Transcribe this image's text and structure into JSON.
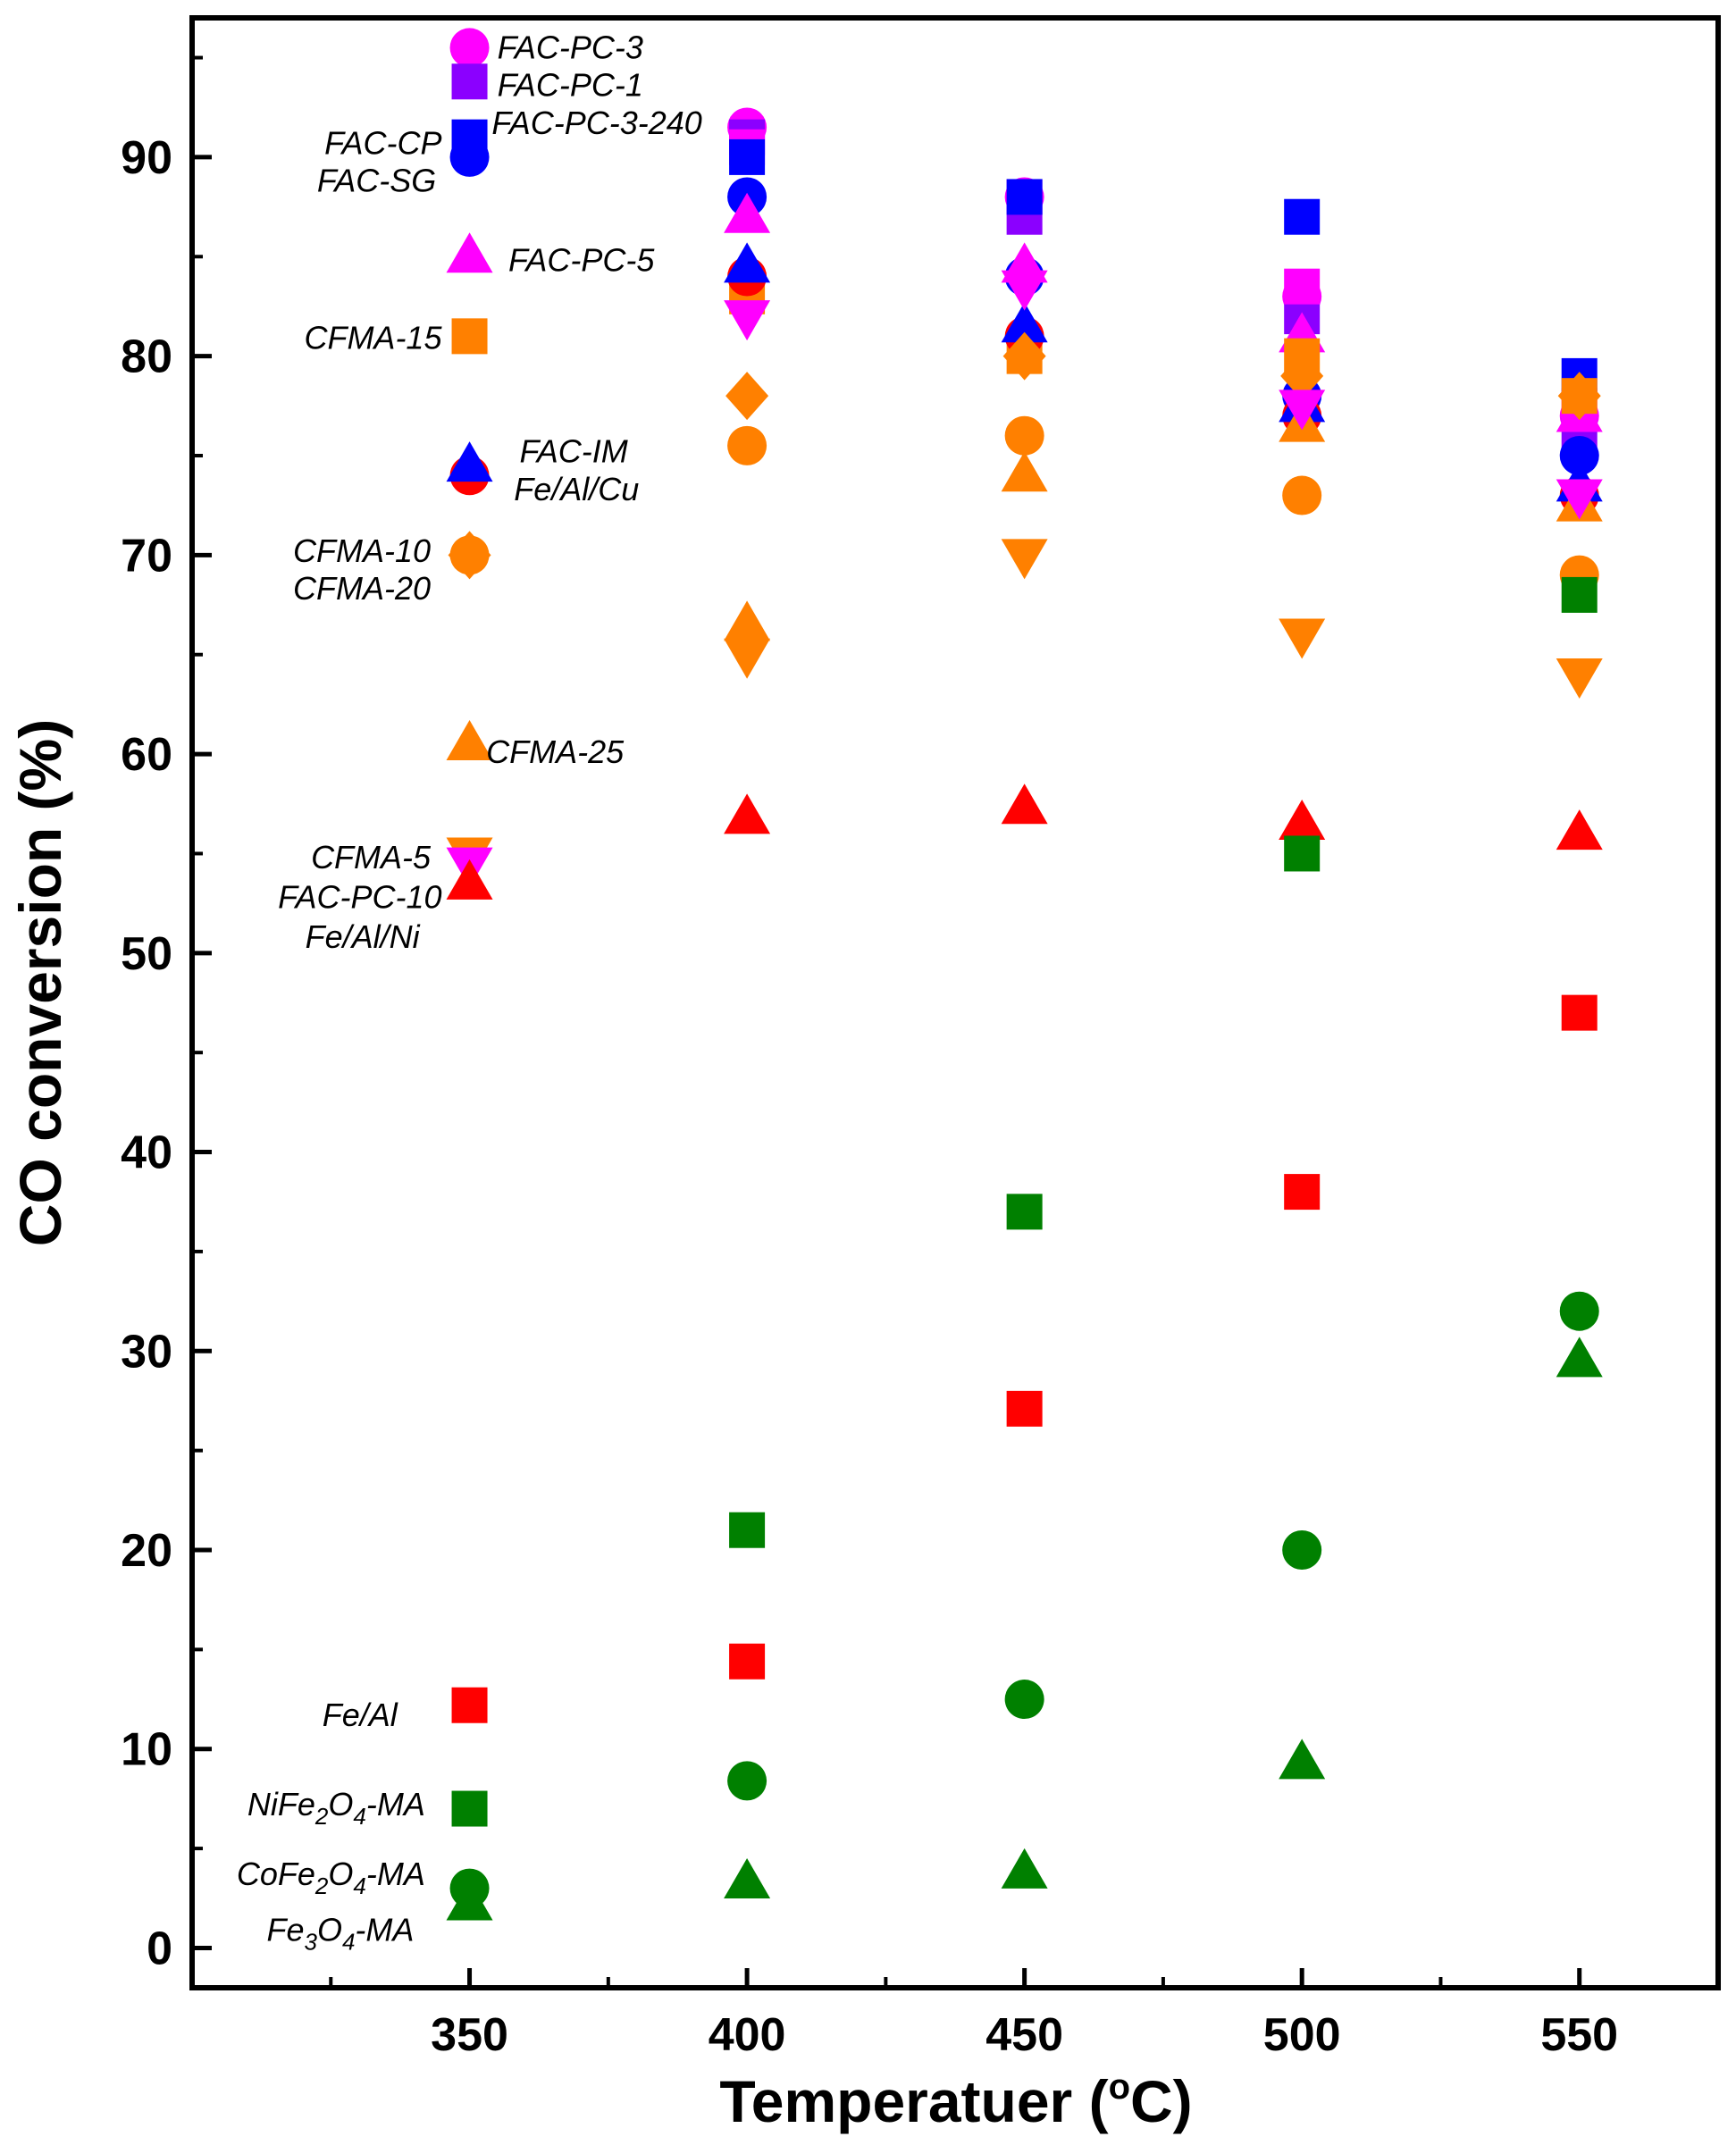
{
  "chart_data": {
    "type": "scatter",
    "title": "",
    "xlabel": "Temperatuer (",
    "xlabel_unit": "C)",
    "xlabel_superscript": "o",
    "ylabel": "CO conversion (%)",
    "xlim": [
      300,
      575
    ],
    "ylim": [
      -2,
      97
    ],
    "xticks": [
      350,
      400,
      450,
      500,
      550
    ],
    "yticks": [
      0,
      10,
      20,
      30,
      40,
      50,
      60,
      70,
      80,
      90
    ],
    "grid": false,
    "legend": "inline labels left of the 350 °C markers",
    "series": [
      {
        "name": "FAC-PC-3",
        "marker": "circle",
        "color": "#ff00ff",
        "x": [
          350,
          400,
          450,
          500,
          550
        ],
        "y": [
          95.5,
          91.5,
          88,
          83,
          77
        ]
      },
      {
        "name": "FAC-PC-1",
        "marker": "square",
        "color": "#8b00ff",
        "x": [
          350,
          400,
          450,
          500,
          550
        ],
        "y": [
          93.8,
          91,
          87,
          82,
          76
        ]
      },
      {
        "name": "FAC-PC-3-240",
        "marker": "square",
        "color": "#ff00ff",
        "x": [
          400,
          450,
          500,
          550
        ],
        "y": [
          90.5,
          88,
          83.5,
          77.5
        ]
      },
      {
        "name": "FAC-CP",
        "marker": "square",
        "color": "#0000ff",
        "x": [
          350,
          400,
          450,
          500,
          550
        ],
        "y": [
          91,
          90,
          88,
          87,
          79
        ]
      },
      {
        "name": "FAC-SG",
        "marker": "circle",
        "color": "#0000ff",
        "x": [
          350,
          400,
          450,
          500,
          550
        ],
        "y": [
          90,
          88,
          84,
          78,
          75
        ]
      },
      {
        "name": "FAC-PC-5",
        "marker": "triangle-up",
        "color": "#ff00ff",
        "x": [
          350,
          400,
          450,
          500,
          550
        ],
        "y": [
          85,
          87,
          84.5,
          81,
          77
        ]
      },
      {
        "name": "CFMA-15",
        "marker": "square",
        "color": "#ff8000",
        "x": [
          350,
          400,
          450,
          500,
          550
        ],
        "y": [
          81,
          83,
          80,
          80,
          78
        ]
      },
      {
        "name": "FAC-IM",
        "marker": "circle",
        "color": "#ff0000",
        "x": [
          350,
          400,
          450,
          500,
          550
        ],
        "y": [
          74,
          84,
          81,
          77,
          73
        ]
      },
      {
        "name": "Fe/Al/Cu",
        "marker": "triangle-up",
        "color": "#0000ff",
        "x": [
          350,
          400,
          450,
          500,
          550
        ],
        "y": [
          74.5,
          84.5,
          81.5,
          77.5,
          73.5
        ]
      },
      {
        "name": "CFMA-10",
        "marker": "diamond",
        "color": "#ff8000",
        "x": [
          350,
          400,
          450,
          500,
          550
        ],
        "y": [
          70,
          78,
          80,
          79,
          78
        ]
      },
      {
        "name": "CFMA-20",
        "marker": "circle",
        "color": "#ff8000",
        "x": [
          350,
          400,
          450,
          500,
          550
        ],
        "y": [
          70,
          75.5,
          76,
          73,
          69
        ]
      },
      {
        "name": "CFMA-25",
        "marker": "triangle-up",
        "color": "#ff8000",
        "x": [
          350,
          400,
          450,
          500,
          550
        ],
        "y": [
          60.5,
          66.5,
          74,
          76.5,
          72.5
        ]
      },
      {
        "name": "CFMA-5",
        "marker": "triangle-down",
        "color": "#ff8000",
        "x": [
          350,
          400,
          450,
          500,
          550
        ],
        "y": [
          55,
          65,
          70,
          66,
          64
        ]
      },
      {
        "name": "FAC-PC-10",
        "marker": "triangle-down",
        "color": "#ff00ff",
        "x": [
          350,
          400,
          450,
          500,
          550
        ],
        "y": [
          54.5,
          82,
          83.5,
          77.5,
          73
        ]
      },
      {
        "name": "Fe/Al/Ni",
        "marker": "triangle-up",
        "color": "#ff0000",
        "x": [
          350,
          400,
          450,
          500,
          550
        ],
        "y": [
          53.5,
          56.8,
          57.3,
          56.5,
          56
        ]
      },
      {
        "name": "Fe/Al",
        "marker": "square",
        "color": "#ff0000",
        "x": [
          350,
          400,
          450,
          500,
          550
        ],
        "y": [
          12.2,
          14.4,
          27.1,
          38,
          47
        ]
      },
      {
        "name": "NiFe2O4-MA",
        "marker": "square",
        "color": "#008000",
        "x": [
          350,
          400,
          450,
          500,
          550
        ],
        "y": [
          7,
          21,
          37,
          55,
          68
        ]
      },
      {
        "name": "CoFe2O4-MA",
        "marker": "circle",
        "color": "#008000",
        "x": [
          350,
          400,
          450,
          500,
          550
        ],
        "y": [
          3,
          8.4,
          12.5,
          20,
          32
        ]
      },
      {
        "name": "Fe3O4-MA",
        "marker": "triangle-up",
        "color": "#008000",
        "x": [
          350,
          400,
          450,
          500,
          550
        ],
        "y": [
          2.2,
          3.3,
          3.8,
          9.3,
          29.5
        ]
      }
    ],
    "labels": [
      {
        "text": "FAC-PC-3",
        "x": 355,
        "y": 95.5,
        "anchor": "start"
      },
      {
        "text": "FAC-PC-1",
        "x": 355,
        "y": 93.6,
        "anchor": "start"
      },
      {
        "text": "FAC-PC-3-240",
        "x": 354,
        "y": 91.7,
        "anchor": "start"
      },
      {
        "text": "FAC-CP",
        "x": 345,
        "y": 90.7,
        "anchor": "end"
      },
      {
        "text": "FAC-SG",
        "x": 344,
        "y": 88.8,
        "anchor": "end"
      },
      {
        "text": "FAC-PC-5",
        "x": 357,
        "y": 84.8,
        "anchor": "start"
      },
      {
        "text": "CFMA-15",
        "x": 345,
        "y": 80.9,
        "anchor": "end"
      },
      {
        "text": "FAC-IM",
        "x": 359,
        "y": 75.2,
        "anchor": "start"
      },
      {
        "text": "Fe/Al/Cu",
        "x": 358,
        "y": 73.3,
        "anchor": "start"
      },
      {
        "text": "CFMA-10",
        "x": 343,
        "y": 70.2,
        "anchor": "end"
      },
      {
        "text": "CFMA-20",
        "x": 343,
        "y": 68.3,
        "anchor": "end"
      },
      {
        "text": "CFMA-25",
        "x": 353,
        "y": 60.1,
        "anchor": "start"
      },
      {
        "text": "CFMA-5",
        "x": 343,
        "y": 54.8,
        "anchor": "end"
      },
      {
        "text": "FAC-PC-10",
        "x": 345,
        "y": 52.8,
        "anchor": "end"
      },
      {
        "text": "Fe/Al/Ni",
        "x": 341,
        "y": 50.8,
        "anchor": "end"
      },
      {
        "text": "Fe/Al",
        "x": 337,
        "y": 11.7,
        "anchor": "end"
      },
      {
        "text": "NiFe",
        "sub1": "2",
        "mid": "O",
        "sub2": "4",
        "tail": "-MA",
        "x": 342,
        "y": 7.2,
        "anchor": "end"
      },
      {
        "text": "CoFe",
        "sub1": "2",
        "mid": "O",
        "sub2": "4",
        "tail": "-MA",
        "x": 342,
        "y": 3.7,
        "anchor": "end"
      },
      {
        "text": "Fe",
        "sub1": "3",
        "mid": "O",
        "sub2": "4",
        "tail": "-MA",
        "x": 340,
        "y": 0.9,
        "anchor": "end"
      }
    ]
  }
}
